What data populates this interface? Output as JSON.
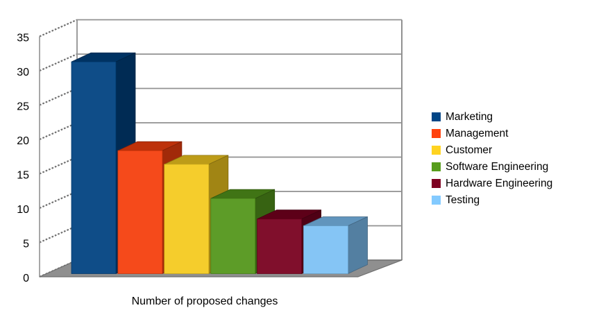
{
  "chart_data": {
    "type": "bar",
    "projection": "3d",
    "title": "",
    "xlabel": "Number of proposed changes",
    "ylabel": "",
    "ylim": [
      0,
      35
    ],
    "ytick_step": 5,
    "yticks": [
      0,
      5,
      10,
      15,
      20,
      25,
      30,
      35
    ],
    "grid": true,
    "legend_position": "right",
    "categories": [
      "Marketing",
      "Management",
      "Customer",
      "Software Engineering",
      "Hardware Engineering",
      "Testing"
    ],
    "values": [
      31,
      18,
      16,
      11,
      8,
      7
    ],
    "series": [
      {
        "name": "Marketing",
        "value": 31,
        "color": "#004586"
      },
      {
        "name": "Management",
        "value": 18,
        "color": "#FF420E"
      },
      {
        "name": "Customer",
        "value": 16,
        "color": "#FFD320"
      },
      {
        "name": "Software Engineering",
        "value": 11,
        "color": "#579D1C"
      },
      {
        "name": "Hardware Engineering",
        "value": 8,
        "color": "#7E0021"
      },
      {
        "name": "Testing",
        "value": 7,
        "color": "#83CAFF"
      }
    ]
  },
  "colors": {
    "background": "#FFFFFF",
    "floor": "#8F8F8F",
    "floor_edge": "#6E6E6E",
    "gridline": "#919191",
    "wall_hatch": "#6F6F6F",
    "text": "#000000"
  }
}
